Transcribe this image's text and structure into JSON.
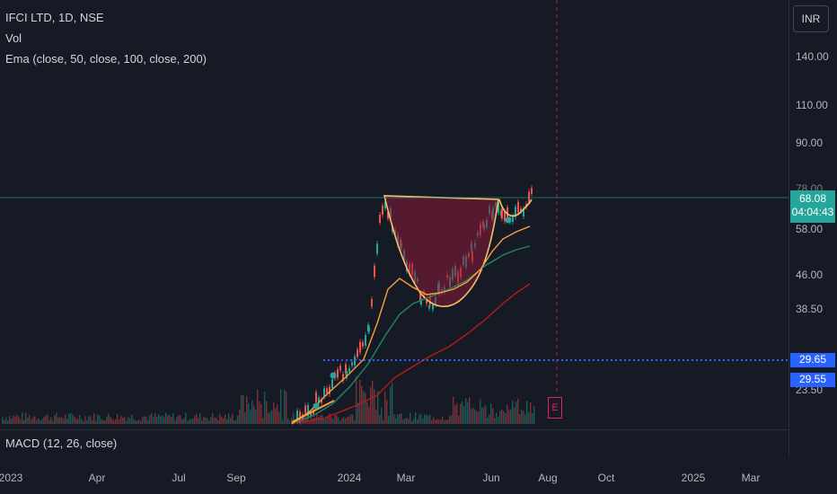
{
  "legend": {
    "symbol": "IFCI LTD, 1D, NSE",
    "vol": "Vol",
    "ema": "Ema (close, 50, close, 100, close, 200)",
    "macd": "MACD (12, 26, close)"
  },
  "currency": "INR",
  "price_axis": [
    "140.00",
    "110.00",
    "90.00",
    "58.00",
    "46.00",
    "38.50",
    "23.50"
  ],
  "overlapped_label": "78.00",
  "last_price": {
    "price": "68.08",
    "countdown": "04:04:43",
    "color": "#26a69a"
  },
  "level_badges": {
    "upper": "29.65",
    "lower": "29.55",
    "color": "#2962ff"
  },
  "time_axis": [
    "2023",
    "Apr",
    "Jul",
    "Sep",
    "2024",
    "Mar",
    "Jun",
    "Aug",
    "Oct",
    "2025",
    "Mar"
  ],
  "event_marker": "E",
  "colors": {
    "background": "#161a25",
    "candle_up": "#26a69a",
    "candle_down": "#ef5350",
    "ema_fast": "#f7a13c",
    "ema_mid": "#1b8a63",
    "ema_slow": "#b71c1c",
    "cup_fill": "#8b1a3a",
    "level_line": "#2962ff"
  }
}
